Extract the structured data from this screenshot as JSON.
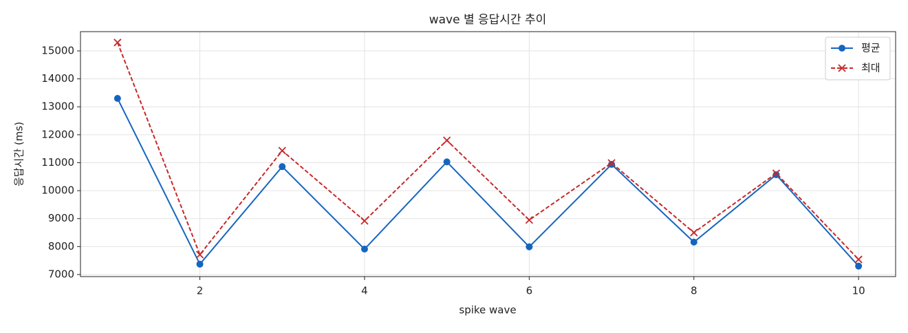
{
  "chart_data": {
    "type": "line",
    "title": "wave 별 응답시간 추이",
    "xlabel": "spike wave",
    "ylabel": "응답시간 (ms)",
    "x": [
      1,
      2,
      3,
      4,
      5,
      6,
      7,
      8,
      9,
      10
    ],
    "series": [
      {
        "name": "평균",
        "color": "#1565c0",
        "marker": "o",
        "linestyle": "solid",
        "values": [
          13300,
          7370,
          10860,
          7910,
          11030,
          7990,
          10940,
          8160,
          10570,
          7300
        ]
      },
      {
        "name": "최대",
        "color": "#c62828",
        "marker": "x",
        "linestyle": "dashed",
        "values": [
          15300,
          7710,
          11430,
          8920,
          11800,
          8950,
          10990,
          8500,
          10620,
          7540
        ]
      }
    ],
    "xlim": [
      0.55,
      10.45
    ],
    "xticks": [
      2,
      4,
      6,
      8,
      10
    ],
    "ylim": [
      6926,
      15689
    ],
    "yticks": [
      7000,
      8000,
      9000,
      10000,
      11000,
      12000,
      13000,
      14000,
      15000
    ],
    "grid": true,
    "legend": "upper right"
  }
}
